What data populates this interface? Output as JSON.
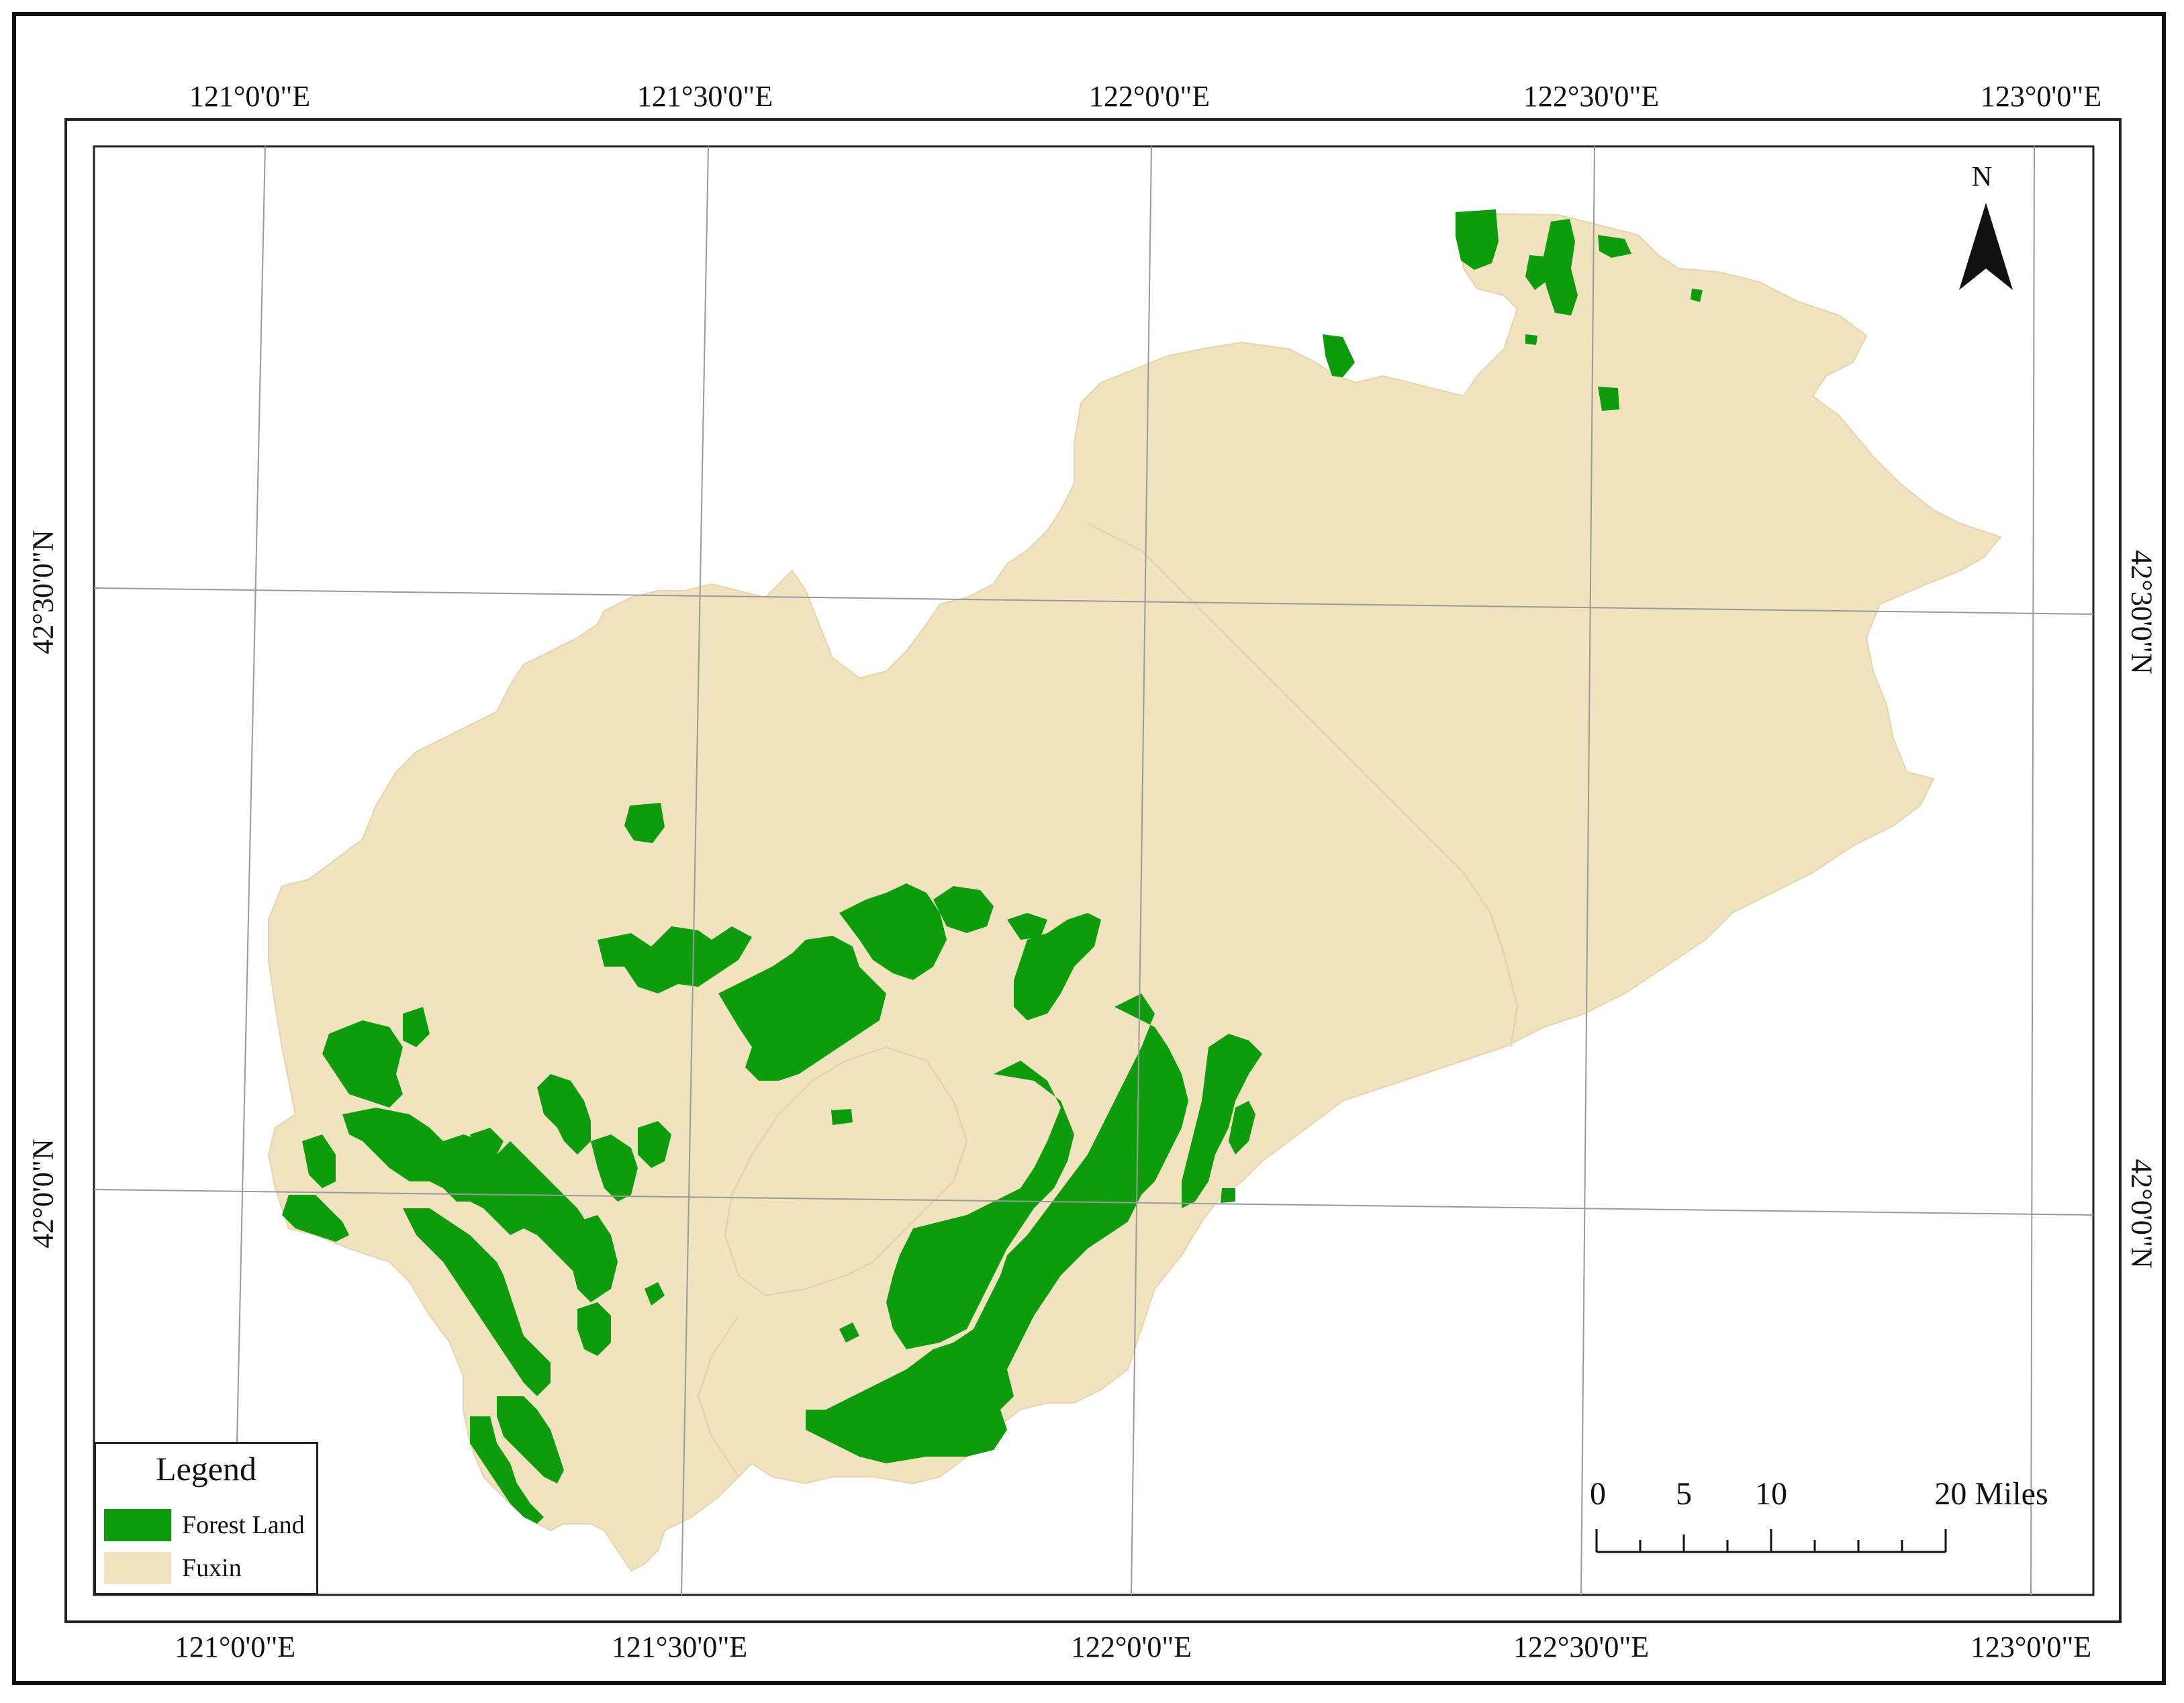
{
  "map": {
    "colors": {
      "forest": "#0c9c0c",
      "fuxin": "#f2e3c0",
      "graticule": "#9a9a9a",
      "frame": "#111111"
    },
    "coords_top": [
      "121°0'0\"E",
      "121°30'0\"E",
      "122°0'0\"E",
      "122°30'0\"E",
      "123°0'0\"E"
    ],
    "coords_bottom": [
      "121°0'0\"E",
      "121°30'0\"E",
      "122°0'0\"E",
      "122°30'0\"E",
      "123°0'0\"E"
    ],
    "coords_left": [
      "42°30'0\"N",
      "42°0'0\"N"
    ],
    "coords_right": [
      "42°30'0\"N",
      "42°0'0\"N"
    ]
  },
  "legend": {
    "title": "Legend",
    "items": [
      {
        "label": "Forest Land",
        "color": "#0c9c0c"
      },
      {
        "label": "Fuxin",
        "color": "#f2e3c0"
      }
    ]
  },
  "north_arrow": {
    "label": "N",
    "icon": "north-arrow-icon"
  },
  "scale_bar": {
    "ticks": [
      "0",
      "5",
      "10",
      "20 Miles"
    ]
  }
}
